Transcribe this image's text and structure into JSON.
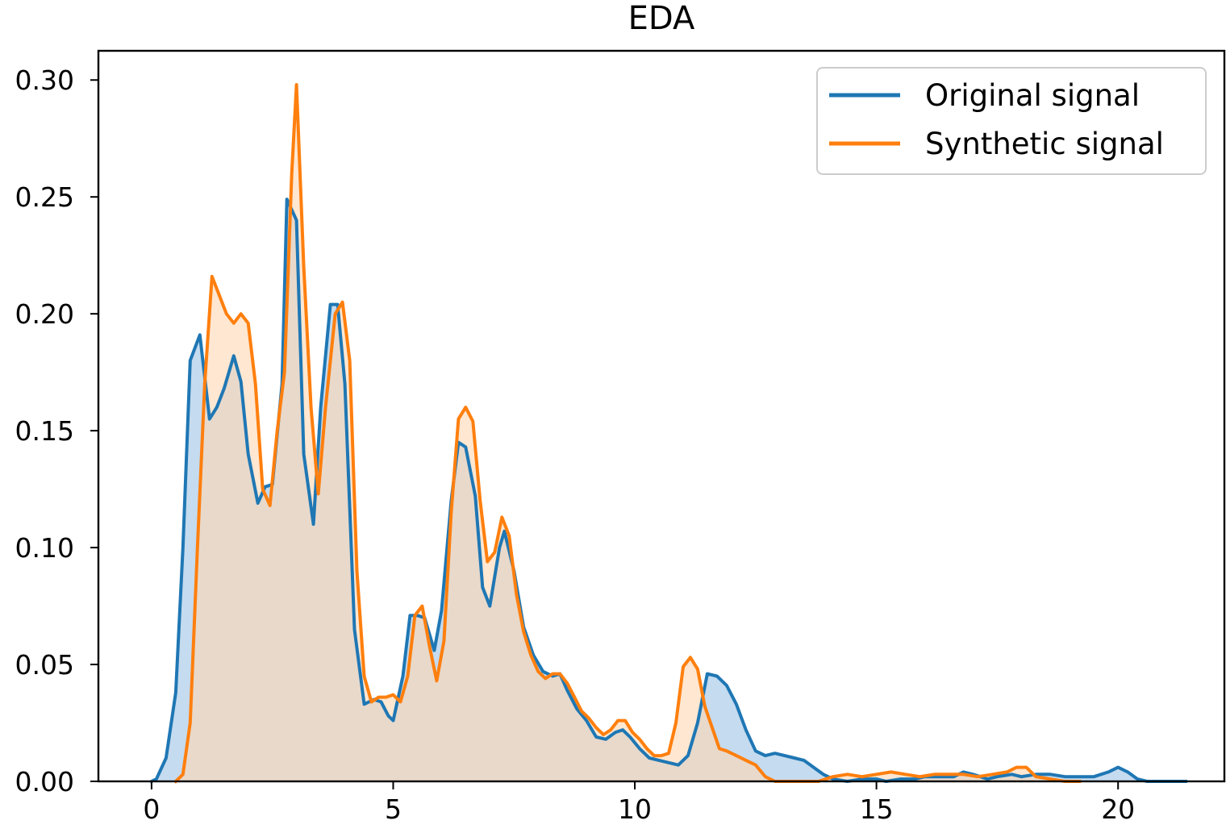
{
  "chart_data": {
    "type": "area",
    "title": "EDA",
    "xlabel": "",
    "ylabel": "",
    "xlim": [
      -1.1,
      22.2
    ],
    "ylim": [
      0,
      0.3125
    ],
    "xticks": [
      0,
      5,
      10,
      15,
      20
    ],
    "xtick_labels": [
      "0",
      "5",
      "10",
      "15",
      "20"
    ],
    "yticks": [
      0.0,
      0.05,
      0.1,
      0.15,
      0.2,
      0.25,
      0.3
    ],
    "ytick_labels": [
      "0.00",
      "0.05",
      "0.10",
      "0.15",
      "0.20",
      "0.25",
      "0.30"
    ],
    "grid": false,
    "legend_position": "top-right",
    "series": [
      {
        "name": "Original signal",
        "color": "#1f77b4",
        "fill_color": "#a6c8e6",
        "points": [
          [
            0.0,
            0.0
          ],
          [
            0.1,
            0.001
          ],
          [
            0.3,
            0.01
          ],
          [
            0.5,
            0.038
          ],
          [
            0.65,
            0.1
          ],
          [
            0.8,
            0.18
          ],
          [
            1.0,
            0.191
          ],
          [
            1.2,
            0.155
          ],
          [
            1.35,
            0.16
          ],
          [
            1.5,
            0.168
          ],
          [
            1.7,
            0.182
          ],
          [
            1.85,
            0.171
          ],
          [
            2.0,
            0.14
          ],
          [
            2.2,
            0.119
          ],
          [
            2.35,
            0.126
          ],
          [
            2.5,
            0.127
          ],
          [
            2.7,
            0.17
          ],
          [
            2.8,
            0.249
          ],
          [
            3.0,
            0.24
          ],
          [
            3.15,
            0.14
          ],
          [
            3.35,
            0.11
          ],
          [
            3.5,
            0.16
          ],
          [
            3.7,
            0.204
          ],
          [
            3.85,
            0.204
          ],
          [
            4.0,
            0.17
          ],
          [
            4.2,
            0.065
          ],
          [
            4.4,
            0.033
          ],
          [
            4.6,
            0.035
          ],
          [
            4.75,
            0.034
          ],
          [
            4.9,
            0.028
          ],
          [
            5.0,
            0.026
          ],
          [
            5.2,
            0.045
          ],
          [
            5.35,
            0.071
          ],
          [
            5.5,
            0.071
          ],
          [
            5.65,
            0.07
          ],
          [
            5.85,
            0.056
          ],
          [
            6.0,
            0.073
          ],
          [
            6.2,
            0.12
          ],
          [
            6.35,
            0.145
          ],
          [
            6.5,
            0.143
          ],
          [
            6.7,
            0.122
          ],
          [
            6.85,
            0.083
          ],
          [
            7.0,
            0.075
          ],
          [
            7.2,
            0.1
          ],
          [
            7.3,
            0.107
          ],
          [
            7.5,
            0.09
          ],
          [
            7.7,
            0.066
          ],
          [
            7.9,
            0.054
          ],
          [
            8.1,
            0.047
          ],
          [
            8.3,
            0.045
          ],
          [
            8.45,
            0.046
          ],
          [
            8.6,
            0.039
          ],
          [
            8.8,
            0.031
          ],
          [
            9.0,
            0.026
          ],
          [
            9.2,
            0.019
          ],
          [
            9.4,
            0.018
          ],
          [
            9.6,
            0.021
          ],
          [
            9.75,
            0.022
          ],
          [
            9.9,
            0.019
          ],
          [
            10.1,
            0.014
          ],
          [
            10.3,
            0.01
          ],
          [
            10.5,
            0.009
          ],
          [
            10.7,
            0.008
          ],
          [
            10.9,
            0.007
          ],
          [
            11.1,
            0.011
          ],
          [
            11.3,
            0.025
          ],
          [
            11.5,
            0.046
          ],
          [
            11.7,
            0.045
          ],
          [
            11.9,
            0.041
          ],
          [
            12.1,
            0.033
          ],
          [
            12.3,
            0.022
          ],
          [
            12.5,
            0.013
          ],
          [
            12.7,
            0.011
          ],
          [
            12.9,
            0.012
          ],
          [
            13.1,
            0.011
          ],
          [
            13.3,
            0.01
          ],
          [
            13.5,
            0.009
          ],
          [
            13.7,
            0.006
          ],
          [
            13.9,
            0.003
          ],
          [
            14.1,
            0.001
          ],
          [
            14.4,
            0.0
          ],
          [
            14.7,
            0.001
          ],
          [
            15.0,
            0.001
          ],
          [
            15.2,
            0.0
          ],
          [
            15.5,
            0.001
          ],
          [
            15.8,
            0.001
          ],
          [
            16.0,
            0.002
          ],
          [
            16.3,
            0.002
          ],
          [
            16.6,
            0.002
          ],
          [
            16.8,
            0.004
          ],
          [
            17.0,
            0.003
          ],
          [
            17.3,
            0.001
          ],
          [
            17.5,
            0.002
          ],
          [
            17.8,
            0.003
          ],
          [
            18.0,
            0.002
          ],
          [
            18.3,
            0.003
          ],
          [
            18.6,
            0.003
          ],
          [
            18.9,
            0.002
          ],
          [
            19.2,
            0.002
          ],
          [
            19.5,
            0.002
          ],
          [
            19.8,
            0.004
          ],
          [
            20.0,
            0.006
          ],
          [
            20.2,
            0.004
          ],
          [
            20.4,
            0.001
          ],
          [
            20.6,
            0.0
          ],
          [
            21.0,
            0.0
          ],
          [
            21.4,
            0.0
          ]
        ]
      },
      {
        "name": "Synthetic signal",
        "color": "#ff7f0e",
        "fill_color": "#ffd7b3",
        "points": [
          [
            0.5,
            0.0
          ],
          [
            0.65,
            0.003
          ],
          [
            0.8,
            0.025
          ],
          [
            0.95,
            0.1
          ],
          [
            1.1,
            0.17
          ],
          [
            1.25,
            0.216
          ],
          [
            1.4,
            0.208
          ],
          [
            1.55,
            0.2
          ],
          [
            1.7,
            0.196
          ],
          [
            1.85,
            0.2
          ],
          [
            2.0,
            0.196
          ],
          [
            2.15,
            0.17
          ],
          [
            2.3,
            0.125
          ],
          [
            2.45,
            0.118
          ],
          [
            2.6,
            0.15
          ],
          [
            2.75,
            0.175
          ],
          [
            2.9,
            0.26
          ],
          [
            3.0,
            0.298
          ],
          [
            3.15,
            0.22
          ],
          [
            3.3,
            0.16
          ],
          [
            3.45,
            0.123
          ],
          [
            3.6,
            0.16
          ],
          [
            3.8,
            0.2
          ],
          [
            3.95,
            0.205
          ],
          [
            4.1,
            0.18
          ],
          [
            4.25,
            0.09
          ],
          [
            4.4,
            0.045
          ],
          [
            4.55,
            0.034
          ],
          [
            4.7,
            0.036
          ],
          [
            4.85,
            0.036
          ],
          [
            5.0,
            0.037
          ],
          [
            5.15,
            0.034
          ],
          [
            5.3,
            0.045
          ],
          [
            5.45,
            0.071
          ],
          [
            5.6,
            0.075
          ],
          [
            5.75,
            0.058
          ],
          [
            5.9,
            0.043
          ],
          [
            6.05,
            0.06
          ],
          [
            6.2,
            0.115
          ],
          [
            6.35,
            0.155
          ],
          [
            6.5,
            0.16
          ],
          [
            6.65,
            0.154
          ],
          [
            6.8,
            0.12
          ],
          [
            6.95,
            0.094
          ],
          [
            7.1,
            0.098
          ],
          [
            7.25,
            0.113
          ],
          [
            7.4,
            0.105
          ],
          [
            7.55,
            0.08
          ],
          [
            7.7,
            0.064
          ],
          [
            7.85,
            0.054
          ],
          [
            8.0,
            0.047
          ],
          [
            8.15,
            0.044
          ],
          [
            8.3,
            0.046
          ],
          [
            8.45,
            0.046
          ],
          [
            8.6,
            0.042
          ],
          [
            8.75,
            0.036
          ],
          [
            8.9,
            0.03
          ],
          [
            9.05,
            0.027
          ],
          [
            9.2,
            0.023
          ],
          [
            9.35,
            0.02
          ],
          [
            9.5,
            0.022
          ],
          [
            9.65,
            0.026
          ],
          [
            9.8,
            0.026
          ],
          [
            9.95,
            0.021
          ],
          [
            10.1,
            0.018
          ],
          [
            10.25,
            0.014
          ],
          [
            10.4,
            0.011
          ],
          [
            10.55,
            0.011
          ],
          [
            10.7,
            0.012
          ],
          [
            10.85,
            0.025
          ],
          [
            11.0,
            0.049
          ],
          [
            11.15,
            0.053
          ],
          [
            11.3,
            0.048
          ],
          [
            11.45,
            0.032
          ],
          [
            11.6,
            0.023
          ],
          [
            11.75,
            0.014
          ],
          [
            11.9,
            0.013
          ],
          [
            12.1,
            0.011
          ],
          [
            12.3,
            0.009
          ],
          [
            12.5,
            0.007
          ],
          [
            12.7,
            0.002
          ],
          [
            12.9,
            0.0
          ],
          [
            13.2,
            0.0
          ],
          [
            13.5,
            0.0
          ],
          [
            13.8,
            0.0
          ],
          [
            14.1,
            0.002
          ],
          [
            14.4,
            0.003
          ],
          [
            14.7,
            0.002
          ],
          [
            15.0,
            0.003
          ],
          [
            15.3,
            0.004
          ],
          [
            15.6,
            0.003
          ],
          [
            15.9,
            0.002
          ],
          [
            16.2,
            0.003
          ],
          [
            16.5,
            0.003
          ],
          [
            16.8,
            0.003
          ],
          [
            17.1,
            0.002
          ],
          [
            17.4,
            0.003
          ],
          [
            17.7,
            0.004
          ],
          [
            17.9,
            0.006
          ],
          [
            18.1,
            0.006
          ],
          [
            18.3,
            0.002
          ],
          [
            18.6,
            0.001
          ],
          [
            18.9,
            0.0
          ],
          [
            19.2,
            0.0
          ]
        ]
      }
    ]
  }
}
